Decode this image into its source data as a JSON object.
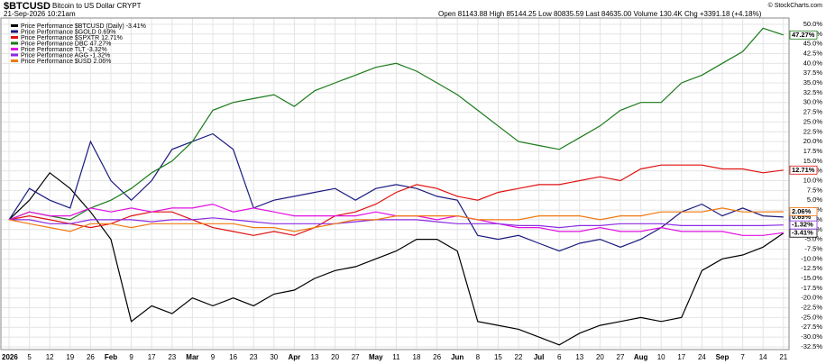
{
  "chart_data": {
    "type": "line",
    "title": "$BTCUSD",
    "subtitle": "Bitcoin to US Dollar CRYPT",
    "date": "21-Sep-2026 10:21am",
    "quote": "Open 81143.88  High 85144.25  Low 80835.59  Last 84635.00  Volume 130.4K  Chg +3391.18 (+4.18%)",
    "copyright": "© StockCharts.com",
    "grid": true,
    "categories": [
      "2026",
      "5",
      "12",
      "19",
      "26",
      "Feb",
      "9",
      "17",
      "23",
      "Mar",
      "9",
      "16",
      "23",
      "30",
      "Apr",
      "13",
      "20",
      "27",
      "May",
      "11",
      "18",
      "26",
      "Jun",
      "8",
      "15",
      "22",
      "Jul",
      "6",
      "13",
      "20",
      "27",
      "Aug",
      "10",
      "17",
      "24",
      "Sep",
      "7",
      "14",
      "21"
    ],
    "ylim": [
      -33.2,
      51.6
    ],
    "yticks": [
      {
        "value": 50,
        "label": "50.0%"
      },
      {
        "value": 47.5,
        "label": "47.5%"
      },
      {
        "value": 45,
        "label": "45.0%"
      },
      {
        "value": 42.5,
        "label": "42.5%"
      },
      {
        "value": 40,
        "label": "40.0%"
      },
      {
        "value": 37.5,
        "label": "37.5%"
      },
      {
        "value": 35,
        "label": "35.0%"
      },
      {
        "value": 32.5,
        "label": "32.5%"
      },
      {
        "value": 30,
        "label": "30.0%"
      },
      {
        "value": 27.5,
        "label": "27.5%"
      },
      {
        "value": 25,
        "label": "25.0%"
      },
      {
        "value": 22.5,
        "label": "22.5%"
      },
      {
        "value": 20,
        "label": "20.0%"
      },
      {
        "value": 17.5,
        "label": "17.5%"
      },
      {
        "value": 15,
        "label": "15.0%"
      },
      {
        "value": 12.5,
        "label": "12.5%"
      },
      {
        "value": 10,
        "label": "10.0%"
      },
      {
        "value": 7.5,
        "label": "7.5%"
      },
      {
        "value": 5,
        "label": "5.0%"
      },
      {
        "value": 2.5,
        "label": "2.5%"
      },
      {
        "value": 0,
        "label": "0.0%"
      },
      {
        "value": -2.5,
        "label": "-2.5%"
      },
      {
        "value": -5,
        "label": "-5.0%"
      },
      {
        "value": -7.5,
        "label": "-7.5%"
      },
      {
        "value": -10,
        "label": "-10.0%"
      },
      {
        "value": -12.5,
        "label": "-12.5%"
      },
      {
        "value": -15,
        "label": "-15.0%"
      },
      {
        "value": -17.5,
        "label": "-17.5%"
      },
      {
        "value": -20,
        "label": "-20.0%"
      },
      {
        "value": -22.5,
        "label": "-22.5%"
      },
      {
        "value": -25,
        "label": "-25.0%"
      },
      {
        "value": -27.5,
        "label": "-27.5%"
      },
      {
        "value": -30,
        "label": "-30.0%"
      },
      {
        "value": -32.5,
        "label": "-32.5%"
      }
    ],
    "series": [
      {
        "name": "Price Performance $BTCUSD (Daily) -3.41%",
        "color": "#000000",
        "end_label": "-3.41%",
        "values": [
          0,
          5,
          12,
          8,
          2,
          -5,
          -26,
          -22,
          -24,
          -20,
          -22,
          -20,
          -22,
          -19,
          -18,
          -15,
          -13,
          -12,
          -10,
          -8,
          -5,
          -5,
          -8,
          -26,
          -27,
          -28,
          -30,
          -32,
          -29,
          -27,
          -26,
          -25,
          -26,
          -25,
          -13,
          -10,
          -9,
          -7,
          -3.41
        ]
      },
      {
        "name": "Price Performance $GOLD 0.69%",
        "color": "#1a1a80",
        "end_label": "0.69%",
        "values": [
          0,
          8,
          5,
          3,
          20,
          10,
          5,
          10,
          18,
          20,
          22,
          18,
          3,
          5,
          6,
          7,
          8,
          5,
          8,
          9,
          8,
          6,
          5,
          -4,
          -5,
          -4,
          -6,
          -8,
          -6,
          -5,
          -7,
          -5,
          -2,
          2,
          4,
          1,
          3,
          1,
          0.69
        ]
      },
      {
        "name": "Price Performance $SPXTR 12.71%",
        "color": "#e01010",
        "end_label": "12.71%",
        "values": [
          0,
          1,
          0,
          -1,
          -2,
          -1,
          1,
          2,
          2,
          0,
          -2,
          -3,
          -4,
          -3,
          -4,
          -2,
          1,
          2,
          4,
          7,
          9,
          8,
          6,
          5,
          7,
          8,
          9,
          9,
          10,
          11,
          10,
          13,
          14,
          14,
          14,
          13,
          13,
          12,
          12.71
        ]
      },
      {
        "name": "Price Performance DBC 47.27%",
        "color": "#1a7a1a",
        "end_label": "47.27%",
        "values": [
          0,
          2,
          1,
          0,
          3,
          5,
          8,
          12,
          15,
          20,
          28,
          30,
          31,
          32,
          29,
          33,
          35,
          37,
          39,
          40,
          38,
          35,
          32,
          28,
          24,
          20,
          19,
          18,
          21,
          24,
          28,
          30,
          30,
          35,
          37,
          40,
          43,
          49,
          47.27
        ]
      },
      {
        "name": "Price Performance TLT -3.32%",
        "color": "#e010e0",
        "values": [
          0,
          2,
          1,
          1,
          3,
          2,
          3,
          2,
          3,
          3,
          4,
          2,
          3,
          2,
          1,
          1,
          1,
          1,
          2,
          1,
          1,
          0,
          1,
          0,
          -1,
          -2,
          -2,
          -3,
          -3,
          -2,
          -3,
          -3,
          -2,
          -3,
          -3,
          -3,
          -4,
          -4,
          -3.32
        ]
      },
      {
        "name": "Price Performance AGG -1.32%",
        "color": "#8a2be2",
        "end_label": "-1.32%",
        "values": [
          0,
          0,
          -1,
          -1,
          0,
          0,
          0,
          -0.5,
          0,
          0,
          0.5,
          0,
          -0.5,
          -1,
          -1,
          -1,
          -1,
          -0.5,
          0,
          0,
          0,
          -0.5,
          -1,
          -1,
          -1,
          -1.5,
          -1.5,
          -2,
          -1.5,
          -1.5,
          -1,
          -1,
          -1,
          -1.5,
          -1.5,
          -1.5,
          -1.5,
          -1.5,
          -1.32
        ]
      },
      {
        "name": "Price Performance $USD 2.06%",
        "color": "#f07810",
        "end_label": "2.06%",
        "values": [
          0,
          -1,
          -2,
          -3,
          -1,
          -1,
          -2,
          -1,
          -1,
          -1,
          -1,
          -1,
          -2,
          -2,
          -3,
          -2,
          -1,
          0,
          0,
          1,
          1,
          1,
          1,
          0,
          0,
          0,
          1,
          1,
          1,
          0,
          1,
          1,
          2,
          2,
          2,
          3,
          2,
          2,
          2.06
        ]
      }
    ]
  }
}
